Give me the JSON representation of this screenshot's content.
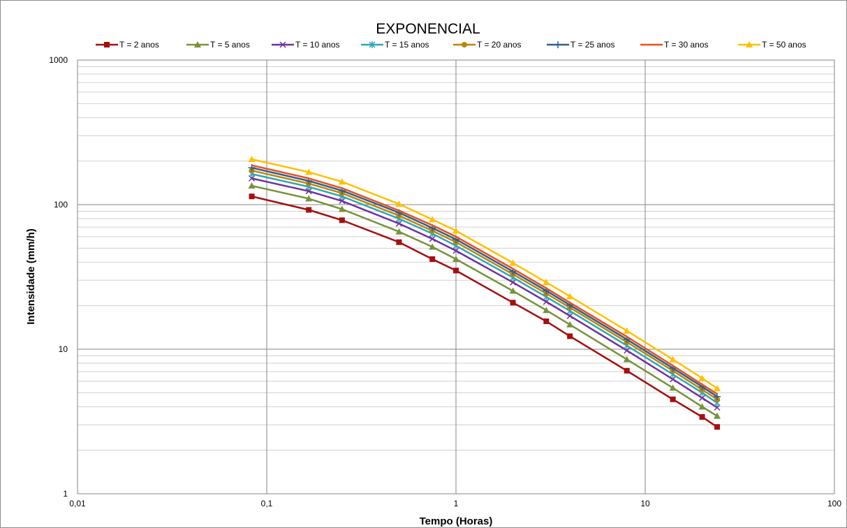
{
  "chart_data": {
    "type": "line",
    "title": "EXPONENCIAL",
    "xlabel": "Tempo (Horas)",
    "ylabel": "Intensidade (mm/h)",
    "xscale": "log",
    "yscale": "log",
    "xlim": [
      0.01,
      100
    ],
    "ylim": [
      1,
      1000
    ],
    "x_tick_labels": [
      "0,01",
      "0,1",
      "1",
      "10",
      "100"
    ],
    "y_tick_labels": [
      "1",
      "10",
      "100",
      "1000"
    ],
    "grid": true,
    "legend_position": "top",
    "x": [
      0.0833,
      0.1667,
      0.25,
      0.5,
      0.75,
      1,
      2,
      3,
      4,
      8,
      14,
      20,
      24
    ],
    "series": [
      {
        "name": "T = 2 anos",
        "color": "#A50F0F",
        "marker": "square",
        "values": [
          114,
          92,
          78,
          55,
          42,
          35,
          21,
          15.6,
          12.3,
          7.1,
          4.5,
          3.4,
          2.9
        ]
      },
      {
        "name": "T = 5 anos",
        "color": "#77933C",
        "marker": "triangle",
        "values": [
          135,
          110,
          93,
          65,
          51,
          42,
          25.3,
          18.6,
          14.8,
          8.5,
          5.4,
          4.0,
          3.45
        ]
      },
      {
        "name": "T = 10 anos",
        "color": "#7030A0",
        "marker": "x",
        "values": [
          152,
          124,
          106,
          74,
          58,
          48,
          29,
          21.3,
          17,
          9.8,
          6.2,
          4.6,
          3.95
        ]
      },
      {
        "name": "T = 15 anos",
        "color": "#31A6B5",
        "marker": "star",
        "values": [
          163,
          133,
          114,
          80,
          63,
          52,
          31.3,
          23,
          18.4,
          10.6,
          6.7,
          5.0,
          4.25
        ]
      },
      {
        "name": "T = 20 anos",
        "color": "#B8860B",
        "marker": "circle",
        "values": [
          172,
          140,
          120,
          84,
          66,
          55,
          33,
          24.3,
          19.4,
          11.2,
          7.1,
          5.25,
          4.5
        ]
      },
      {
        "name": "T = 25 anos",
        "color": "#2E5E8E",
        "marker": "plus",
        "values": [
          180,
          146,
          125,
          88,
          69,
          57.5,
          34.5,
          25.4,
          20.2,
          11.7,
          7.4,
          5.5,
          4.7
        ]
      },
      {
        "name": "T = 30 anos",
        "color": "#E8501A",
        "marker": "none",
        "values": [
          187,
          152,
          130,
          91,
          72,
          60,
          36,
          26.4,
          21,
          12.2,
          7.7,
          5.7,
          4.9
        ]
      },
      {
        "name": "T = 50 anos",
        "color": "#FFC000",
        "marker": "triangle",
        "values": [
          206,
          168,
          144,
          101,
          79,
          66,
          39.5,
          29,
          23.2,
          13.4,
          8.5,
          6.3,
          5.35
        ]
      }
    ]
  }
}
